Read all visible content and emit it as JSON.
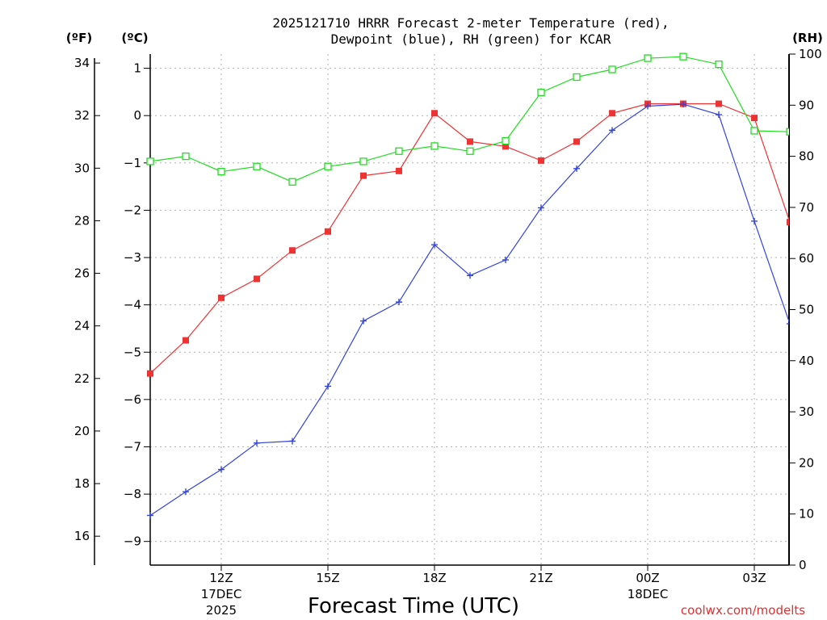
{
  "chart_data": {
    "type": "line",
    "title_line1": "2025121710 HRRR Forecast 2-meter Temperature (red),",
    "title_line2": "Dewpoint (blue), RH (green) for KCAR",
    "xlabel": "Forecast Time (UTC)",
    "units": {
      "fahrenheit": "(ºF)",
      "celsius": "(ºC)",
      "rh": "(RH)"
    },
    "x_hours": [
      10,
      11,
      12,
      13,
      14,
      15,
      16,
      17,
      18,
      19,
      20,
      21,
      22,
      23,
      24,
      25,
      26,
      27,
      28
    ],
    "x_ticks": [
      {
        "hour": 12,
        "label": "12Z",
        "date": "17DEC",
        "year": "2025"
      },
      {
        "hour": 15,
        "label": "15Z"
      },
      {
        "hour": 18,
        "label": "18Z"
      },
      {
        "hour": 21,
        "label": "21Z"
      },
      {
        "hour": 24,
        "label": "00Z",
        "date": "18DEC"
      },
      {
        "hour": 27,
        "label": "03Z"
      }
    ],
    "celsius_ticks": [
      "1",
      "0",
      "−1",
      "−2",
      "−3",
      "−4",
      "−5",
      "−6",
      "−7",
      "−8",
      "−9"
    ],
    "fahrenheit_ticks": [
      "34",
      "32",
      "30",
      "28",
      "26",
      "24",
      "22",
      "20",
      "18",
      "16"
    ],
    "rh_ticks": [
      "100",
      "90",
      "80",
      "70",
      "60",
      "50",
      "40",
      "30",
      "20",
      "10",
      "0"
    ],
    "celsius_range": [
      -9.5,
      1.3
    ],
    "rh_range": [
      0,
      100
    ],
    "series": [
      {
        "name": "Temperature",
        "axis": "celsius",
        "color": "#ee3333",
        "marker": "filled-square",
        "values": [
          -5.45,
          -4.75,
          -3.85,
          -3.45,
          -2.85,
          -2.45,
          -1.27,
          -1.17,
          0.05,
          -0.55,
          -0.65,
          -0.95,
          -0.55,
          0.05,
          0.25,
          0.25,
          0.25,
          -0.05,
          -2.25
        ]
      },
      {
        "name": "Dewpoint",
        "axis": "celsius",
        "color": "#3344dd",
        "marker": "plus",
        "values": [
          -8.45,
          -7.95,
          -7.48,
          -6.92,
          -6.88,
          -5.72,
          -4.34,
          -3.94,
          -2.73,
          -3.38,
          -3.05,
          -1.95,
          -1.12,
          -0.31,
          0.2,
          0.24,
          0.02,
          -2.23,
          -4.4
        ]
      },
      {
        "name": "RH",
        "axis": "rh",
        "color": "#22dd22",
        "marker": "open-square",
        "values": [
          79,
          80,
          77,
          78,
          75,
          78,
          79,
          81,
          82,
          81,
          83,
          92.5,
          95.5,
          97,
          99.2,
          99.5,
          98,
          85,
          84.8
        ]
      }
    ]
  },
  "credit": "coolwx.com/modelts"
}
